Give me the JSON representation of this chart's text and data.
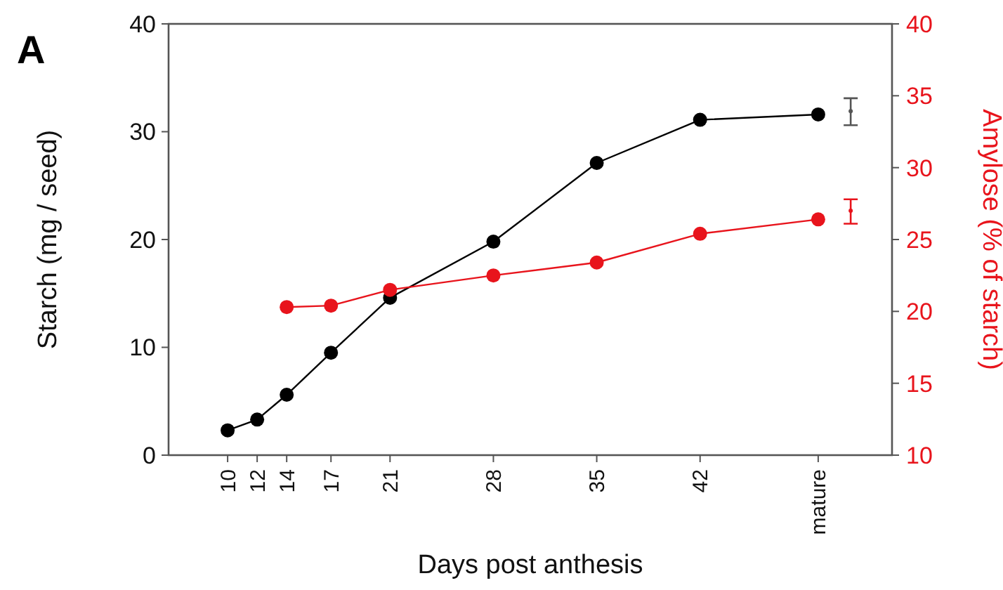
{
  "chart_data": {
    "type": "line",
    "xlabel": "Days post anthesis",
    "ylabel": "Starch (mg / seed)",
    "y2label": "Amylose (% of starch)",
    "annotations": [
      "A"
    ],
    "xlim": [
      6,
      55
    ],
    "xticks": [
      10,
      12,
      14,
      17,
      21,
      28,
      35,
      42,
      {
        "value": 50,
        "label": "mature"
      }
    ],
    "ylim": [
      0,
      40
    ],
    "yticks": [
      0,
      10,
      20,
      30,
      40
    ],
    "y2lim": [
      10,
      40
    ],
    "y2ticks": [
      10,
      15,
      20,
      25,
      30,
      35,
      40
    ],
    "grid": false,
    "line_style": "solid",
    "marker": "circle",
    "series": [
      {
        "color": "#000000",
        "x": [
          10,
          12,
          14,
          17,
          21,
          28,
          35,
          42,
          50
        ],
        "values": [
          2.3,
          3.3,
          5.6,
          9.5,
          14.6,
          19.8,
          27.1,
          31.1,
          31.6
        ]
      },
      {
        "color": "#e8141c",
        "axis": "y2",
        "x": [
          14,
          17,
          21,
          28,
          35,
          42,
          50
        ],
        "values": [
          20.3,
          20.4,
          21.5,
          22.5,
          23.4,
          25.4,
          26.4
        ]
      },
      {
        "type": "scatter",
        "marker": "circle",
        "color": "#555555",
        "x": [
          52.2
        ],
        "values": [
          31.9
        ],
        "errors": [
          [
            30.6,
            33.1
          ]
        ]
      },
      {
        "type": "scatter",
        "marker": "circle",
        "color": "#e8141c",
        "axis": "y2",
        "x": [
          52.2
        ],
        "values": [
          27.0
        ],
        "errors": [
          [
            26.1,
            27.8
          ]
        ]
      }
    ]
  }
}
